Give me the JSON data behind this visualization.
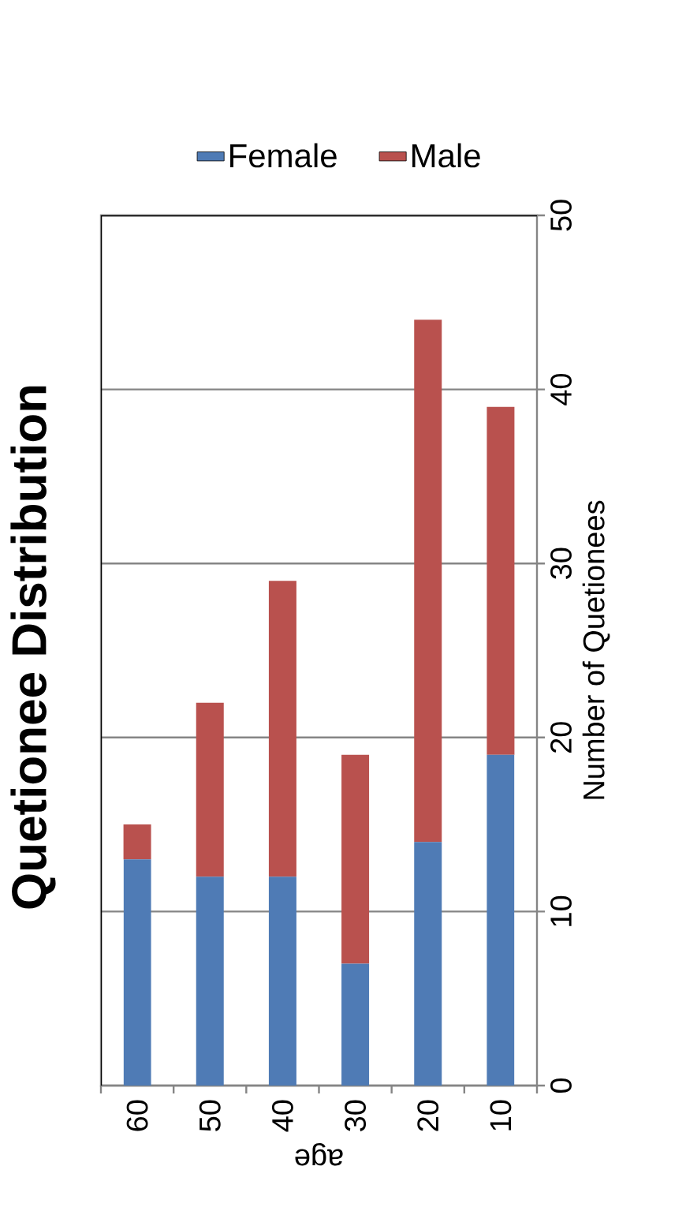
{
  "chart_data": {
    "type": "bar",
    "title": "Quetionee Distribution",
    "xlabel": "age",
    "ylabel": "Number of Quetionees",
    "stacked": true,
    "categories": [
      "60",
      "50",
      "40",
      "30",
      "20",
      "10"
    ],
    "series": [
      {
        "name": "Female",
        "color": "#4f7bb5",
        "values": [
          13,
          12,
          12,
          7,
          14,
          19
        ]
      },
      {
        "name": "Male",
        "color": "#b9514e",
        "values": [
          2,
          10,
          17,
          12,
          30,
          20
        ]
      }
    ],
    "ylim": [
      0,
      50
    ],
    "yticks": [
      0,
      10,
      20,
      30,
      40,
      50
    ],
    "grid": "y",
    "legend": "top"
  }
}
